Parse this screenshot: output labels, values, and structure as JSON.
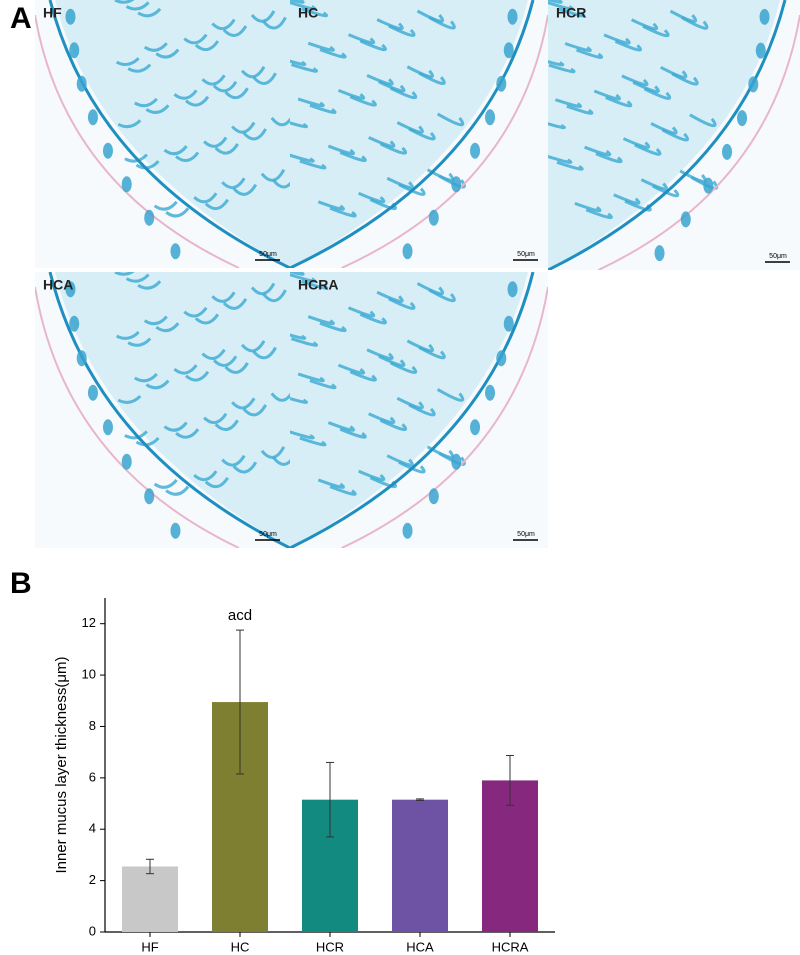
{
  "panel_a": {
    "label": "A",
    "images": [
      {
        "label": "HF",
        "scale": "50μm"
      },
      {
        "label": "HC",
        "scale": "50μm"
      },
      {
        "label": "HCR",
        "scale": "50μm"
      },
      {
        "label": "HCA",
        "scale": "50μm"
      },
      {
        "label": "HCRA",
        "scale": "50μm"
      }
    ]
  },
  "chart_data": {
    "type": "bar",
    "panel_label": "B",
    "ylabel": "Inner mucus layer thickness(μm)",
    "categories": [
      "HF",
      "HC",
      "HCR",
      "HCA",
      "HCRA"
    ],
    "values": [
      2.55,
      8.95,
      5.15,
      5.15,
      5.9
    ],
    "errors": [
      0.28,
      2.8,
      1.45,
      0.03,
      0.97
    ],
    "colors": [
      "#c8c8c8",
      "#7f7f32",
      "#128a80",
      "#6e52a4",
      "#85287e"
    ],
    "annotations": [
      {
        "category": 1,
        "text": "acd"
      }
    ],
    "ylim": [
      0,
      13
    ],
    "yticks": [
      0,
      2,
      4,
      6,
      8,
      10,
      12
    ]
  }
}
